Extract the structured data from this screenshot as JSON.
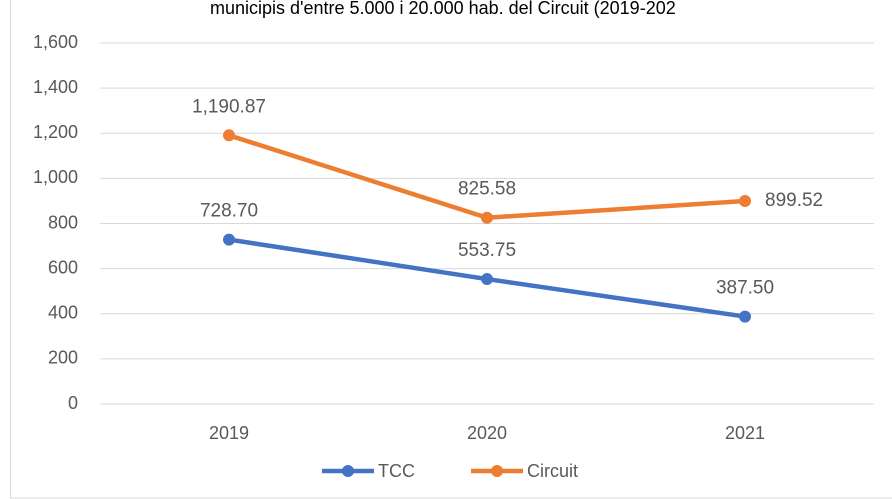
{
  "chart_data": {
    "type": "line",
    "title": "municipis d'entre 5.000 i 20.000 hab. del Circuit (2019-202",
    "categories": [
      "2019",
      "2020",
      "2021"
    ],
    "series": [
      {
        "name": "TCC",
        "color": "#4472c4",
        "values": [
          728.7,
          553.75,
          387.5
        ],
        "value_labels": [
          "728.70",
          "553.75",
          "387.50"
        ]
      },
      {
        "name": "Circuit",
        "color": "#ed7d31",
        "values": [
          1190.87,
          825.58,
          899.52
        ],
        "value_labels": [
          "1,190.87",
          "825.58",
          "899.52"
        ]
      }
    ],
    "ylim": [
      0,
      1600
    ],
    "yticks": [
      0,
      200,
      400,
      600,
      800,
      {
        "value": 1000,
        "label": "1,000"
      },
      {
        "value": 1200,
        "label": "1,200"
      },
      {
        "value": 1400,
        "label": "1,400"
      },
      {
        "value": 1600,
        "label": "1,600"
      }
    ],
    "grid": true,
    "legend": "bottom"
  }
}
